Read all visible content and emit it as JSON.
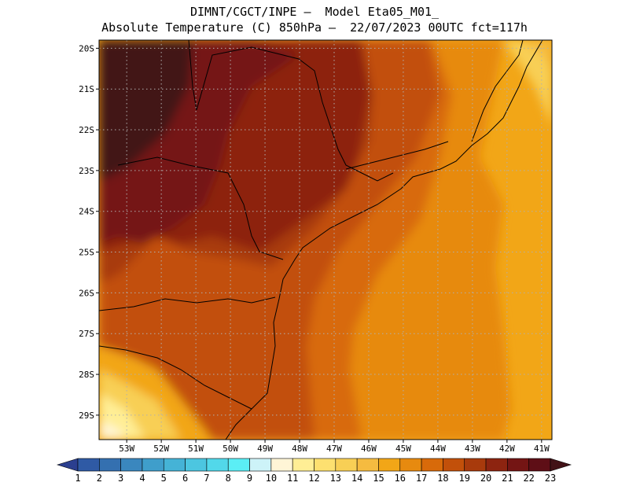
{
  "title": {
    "line1": "DIMNT/CGCT/INPE –  Model Eta05_M01_",
    "line2": "Absolute Temperature (C) 850hPa –  22/07/2023 00UTC fct=117h"
  },
  "map": {
    "lon_range": [
      -53.8,
      -40.7
    ],
    "lat_range": [
      -29.6,
      -19.8
    ],
    "lon_ticks": [
      {
        "value": -53,
        "label": "53W"
      },
      {
        "value": -52,
        "label": "52W"
      },
      {
        "value": -51,
        "label": "51W"
      },
      {
        "value": -50,
        "label": "50W"
      },
      {
        "value": -49,
        "label": "49W"
      },
      {
        "value": -48,
        "label": "48W"
      },
      {
        "value": -47,
        "label": "47W"
      },
      {
        "value": -46,
        "label": "46W"
      },
      {
        "value": -45,
        "label": "45W"
      },
      {
        "value": -44,
        "label": "44W"
      },
      {
        "value": -43,
        "label": "43W"
      },
      {
        "value": -42,
        "label": "42W"
      },
      {
        "value": -41,
        "label": "41W"
      }
    ],
    "lat_ticks": [
      {
        "value": -20,
        "label": "20S"
      },
      {
        "value": -21,
        "label": "21S"
      },
      {
        "value": -22,
        "label": "22S"
      },
      {
        "value": -23,
        "label": "23S"
      },
      {
        "value": -24,
        "label": "24S"
      },
      {
        "value": -25,
        "label": "25S"
      },
      {
        "value": -26,
        "label": "26S"
      },
      {
        "value": -27,
        "label": "27S"
      },
      {
        "value": -28,
        "label": "28S"
      },
      {
        "value": -29,
        "label": "29S"
      }
    ],
    "grid": "dotted"
  },
  "colorbar": {
    "labels": [
      "1",
      "2",
      "3",
      "4",
      "5",
      "6",
      "7",
      "8",
      "9",
      "10",
      "11",
      "12",
      "13",
      "14",
      "15",
      "16",
      "17",
      "18",
      "19",
      "20",
      "21",
      "22",
      "23"
    ],
    "colors": [
      "#2b3f8f",
      "#2f5aa5",
      "#3470b0",
      "#3a87be",
      "#3f9ecb",
      "#45b3d6",
      "#4cc6e0",
      "#52d8ea",
      "#5beef5",
      "#cdf3f8",
      "#fff5d6",
      "#ffee95",
      "#fde070",
      "#f8cf55",
      "#f5bb40",
      "#f2a617",
      "#e78a0f",
      "#d86a0a",
      "#c2500a",
      "#a83a0c",
      "#8d2410",
      "#741514",
      "#5e0e16",
      "#421217"
    ]
  }
}
